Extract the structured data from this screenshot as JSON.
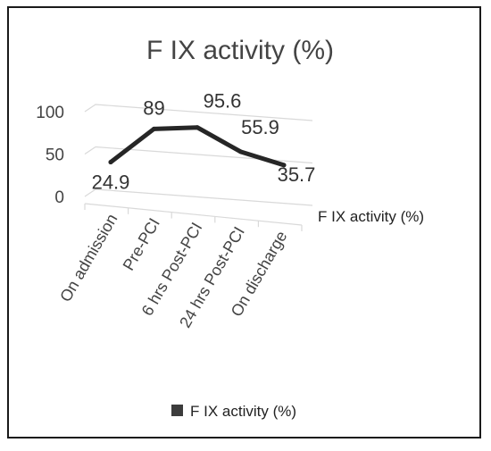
{
  "chart_data": {
    "type": "line",
    "title": "F IX activity (%)",
    "categories": [
      "On admission",
      "Pre-PCI",
      "6 hrs Post-PCI",
      "24 hrs Post-PCI",
      "On discharge"
    ],
    "series": [
      {
        "name": "F IX activity (%)",
        "values": [
          24.9,
          89,
          95.6,
          55.9,
          35.7
        ],
        "color": "#262626"
      }
    ],
    "data_labels": [
      "24.9",
      "89",
      "95.6",
      "55.9",
      "35.7"
    ],
    "y_ticks": [
      "0",
      "50",
      "100"
    ],
    "ylim": [
      0,
      100
    ],
    "grid": true,
    "legend": {
      "position": "bottom",
      "label": "F IX activity (%)"
    },
    "depth_axis_label": "F IX activity (%)"
  }
}
